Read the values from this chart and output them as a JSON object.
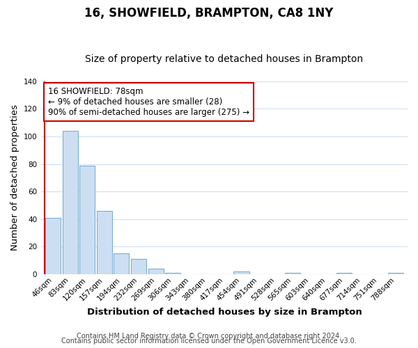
{
  "title": "16, SHOWFIELD, BRAMPTON, CA8 1NY",
  "subtitle": "Size of property relative to detached houses in Brampton",
  "xlabel": "Distribution of detached houses by size in Brampton",
  "ylabel": "Number of detached properties",
  "bar_labels": [
    "46sqm",
    "83sqm",
    "120sqm",
    "157sqm",
    "194sqm",
    "232sqm",
    "269sqm",
    "306sqm",
    "343sqm",
    "380sqm",
    "417sqm",
    "454sqm",
    "491sqm",
    "528sqm",
    "565sqm",
    "603sqm",
    "640sqm",
    "677sqm",
    "714sqm",
    "751sqm",
    "788sqm"
  ],
  "bar_values": [
    41,
    104,
    79,
    46,
    15,
    11,
    4,
    1,
    0,
    0,
    0,
    2,
    0,
    0,
    1,
    0,
    0,
    1,
    0,
    0,
    1
  ],
  "bar_color": "#ccdff2",
  "bar_edge_color": "#7aafd4",
  "vline_color": "#cc0000",
  "vline_x": -0.5,
  "ylim": [
    0,
    140
  ],
  "yticks": [
    0,
    20,
    40,
    60,
    80,
    100,
    120,
    140
  ],
  "annotation_text": "16 SHOWFIELD: 78sqm\n← 9% of detached houses are smaller (28)\n90% of semi-detached houses are larger (275) →",
  "footer_line1": "Contains HM Land Registry data © Crown copyright and database right 2024.",
  "footer_line2": "Contains public sector information licensed under the Open Government Licence v3.0.",
  "background_color": "#ffffff",
  "grid_color": "#d0dff0",
  "title_fontsize": 12,
  "subtitle_fontsize": 10,
  "axis_label_fontsize": 9.5,
  "tick_fontsize": 7.5,
  "annotation_fontsize": 8.5,
  "footer_fontsize": 7
}
